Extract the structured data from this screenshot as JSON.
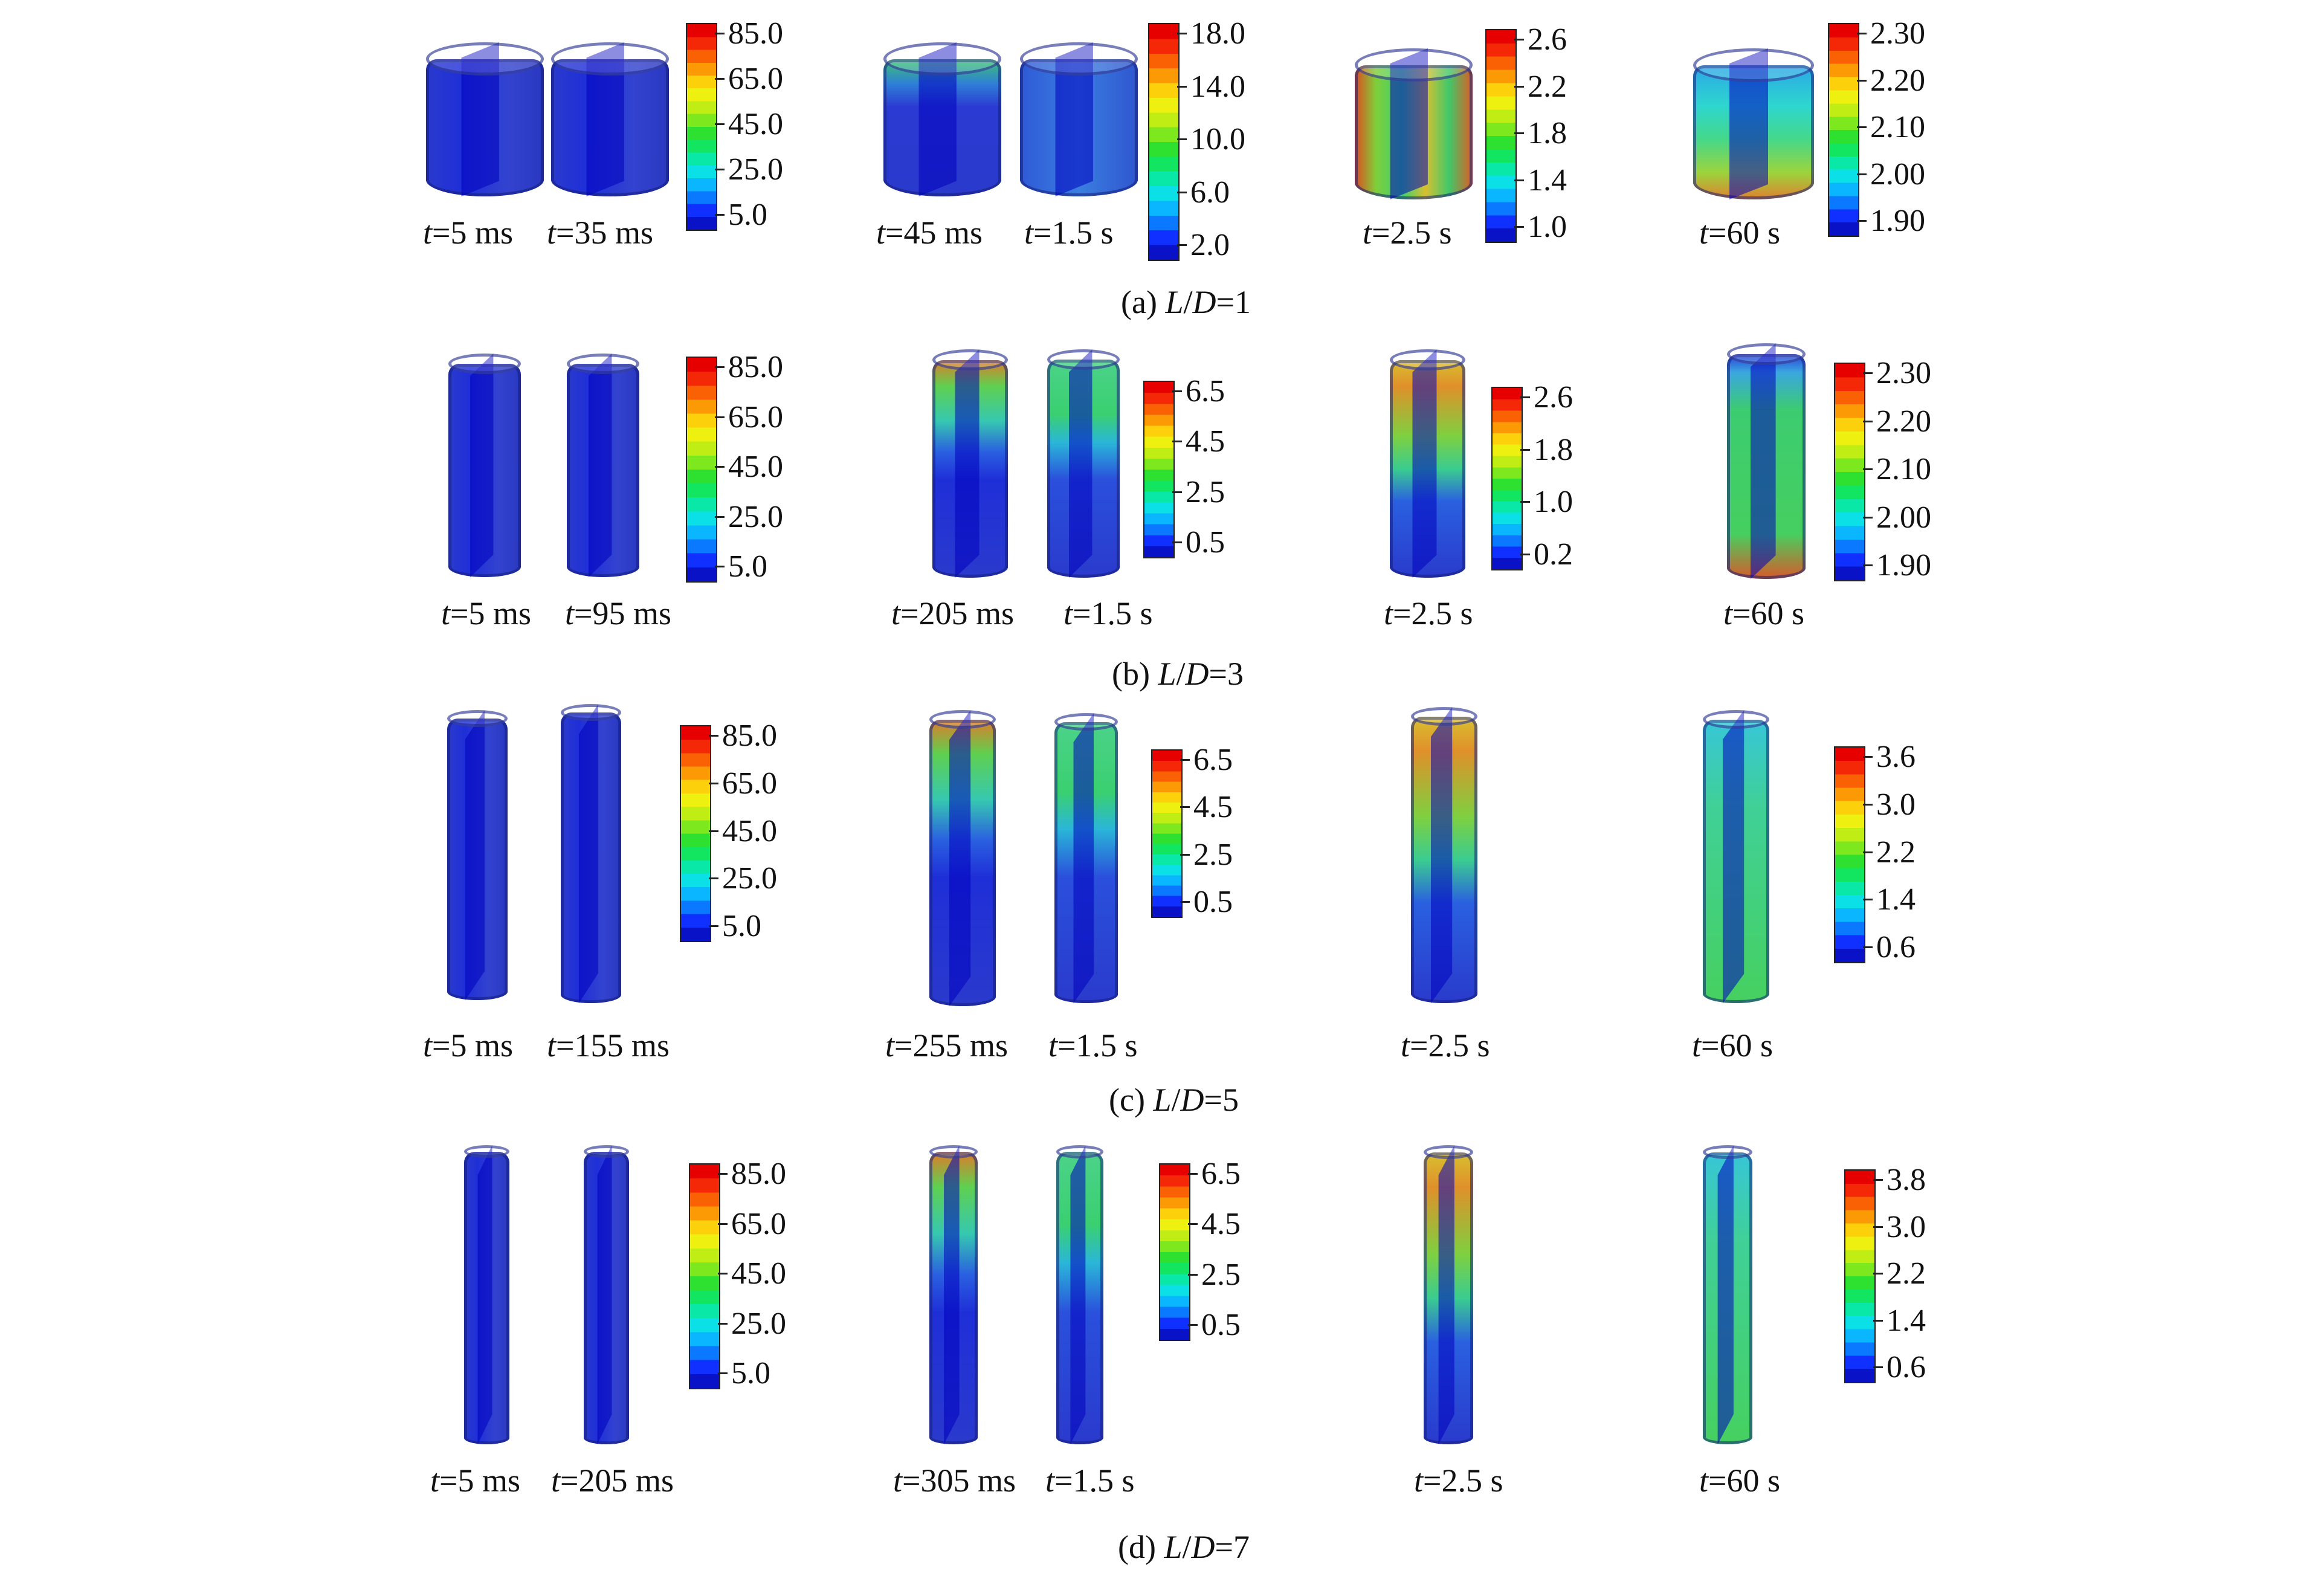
{
  "colormap": [
    "#0a12c8",
    "#1030ff",
    "#0a78ff",
    "#09b6ff",
    "#0ae0e6",
    "#0ae8a8",
    "#12e660",
    "#2ee030",
    "#7ee81e",
    "#c0ee14",
    "#eef010",
    "#fcd00a",
    "#fc9a06",
    "#fa6004",
    "#f42806",
    "#e60000"
  ],
  "panels": [
    {
      "caption_prefix": "(a) ",
      "caption_L": "L",
      "caption_slash": "/",
      "caption_D": "D",
      "caption_value": "=1",
      "labels": [
        "5 ms",
        "35 ms",
        "45 ms",
        "1.5 s",
        "2.5 s",
        "60 s"
      ],
      "label_var": "t",
      "scales": [
        [
          "85.0",
          "65.0",
          "45.0",
          "25.0",
          "5.0"
        ],
        [
          "18.0",
          "14.0",
          "10.0",
          "6.0",
          "2.0"
        ],
        [
          "2.6",
          "2.2",
          "1.8",
          "1.4",
          "1.0"
        ],
        [
          "2.30",
          "2.20",
          "2.10",
          "2.00",
          "1.90"
        ]
      ]
    },
    {
      "caption_prefix": "(b) ",
      "caption_L": "L",
      "caption_slash": "/",
      "caption_D": "D",
      "caption_value": "=3",
      "labels": [
        "5 ms",
        "95 ms",
        "205 ms",
        "1.5 s",
        "2.5 s",
        "60 s"
      ],
      "label_var": "t",
      "scales": [
        [
          "85.0",
          "65.0",
          "45.0",
          "25.0",
          "5.0"
        ],
        [
          "6.5",
          "4.5",
          "2.5",
          "0.5"
        ],
        [
          "2.6",
          "1.8",
          "1.0",
          "0.2"
        ],
        [
          "2.30",
          "2.20",
          "2.10",
          "2.00",
          "1.90"
        ]
      ]
    },
    {
      "caption_prefix": "(c) ",
      "caption_L": "L",
      "caption_slash": "/",
      "caption_D": "D",
      "caption_value": "=5",
      "labels": [
        "5 ms",
        "155 ms",
        "255 ms",
        "1.5 s",
        "2.5 s",
        "60 s"
      ],
      "label_var": "t",
      "scales": [
        [
          "85.0",
          "65.0",
          "45.0",
          "25.0",
          "5.0"
        ],
        [
          "6.5",
          "4.5",
          "2.5",
          "0.5"
        ],
        [
          "3.6",
          "3.0",
          "2.2",
          "1.4",
          "0.6"
        ]
      ]
    },
    {
      "caption_prefix": "(d) ",
      "caption_L": "L",
      "caption_slash": "/",
      "caption_D": "D",
      "caption_value": "=7",
      "labels": [
        "5 ms",
        "205 ms",
        "305 ms",
        "1.5 s",
        "2.5 s",
        "60 s"
      ],
      "label_var": "t",
      "scales": [
        [
          "85.0",
          "65.0",
          "45.0",
          "25.0",
          "5.0"
        ],
        [
          "6.5",
          "4.5",
          "2.5",
          "0.5"
        ],
        [
          "3.8",
          "3.0",
          "2.2",
          "1.4",
          "0.6"
        ]
      ]
    }
  ]
}
